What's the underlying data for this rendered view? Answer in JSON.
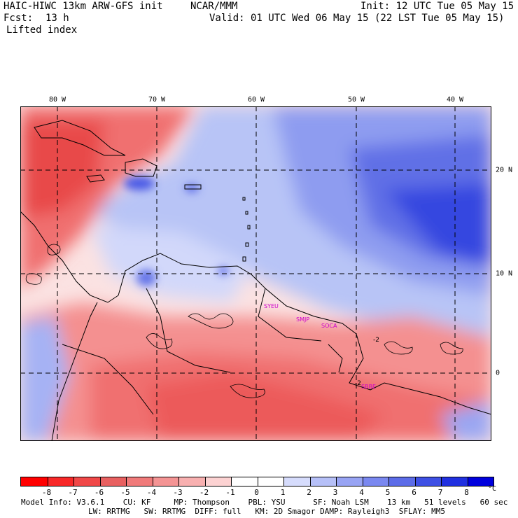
{
  "header": {
    "model_title": "HAIC-HIWC 13km ARW-GFS init",
    "center": "NCAR/MMM",
    "init": "Init: 12 UTC Tue 05 May 15",
    "fcst_label": "Fcst:",
    "fcst_value": "13 h",
    "valid": "Valid: 01 UTC Wed 06 May 15 (22 LST Tue 05 May 15)",
    "field": "Lifted index"
  },
  "map": {
    "longitude_labels": [
      "80 W",
      "70 W",
      "60 W",
      "50 W",
      "40 W"
    ],
    "latitude_labels": [
      "20 N",
      "10 N",
      "0"
    ],
    "locations": [
      {
        "name": "SYEU"
      },
      {
        "name": "SMJP"
      },
      {
        "name": "SOCA"
      },
      {
        "name": "SBBE"
      }
    ],
    "contour_labels": [
      "-2",
      "-2"
    ]
  },
  "colorbar": {
    "ticks": [
      "-8",
      "-7",
      "-6",
      "-5",
      "-4",
      "-3",
      "-2",
      "-1",
      "0",
      "1",
      "2",
      "3",
      "4",
      "5",
      "6",
      "7",
      "8"
    ],
    "unit": "°C",
    "colors": [
      "#ff0000",
      "#f82828",
      "#f04848",
      "#e86060",
      "#f07a7a",
      "#f49494",
      "#f8b0b0",
      "#fcd2d2",
      "#ffffff",
      "#ffffff",
      "#d6dcfc",
      "#b6c0f8",
      "#98a4f4",
      "#7a88f0",
      "#5c6ce8",
      "#3e50e4",
      "#2030e0",
      "#0000dd"
    ]
  },
  "model_info": {
    "line1": "Model Info: V3.6.1    CU: KF     MP: Thompson    PBL: YSU      SF: Noah LSM    13 km   51 levels   60 sec",
    "line2": "LW: RRTMG   SW: RRTMG  DIFF: full   KM: 2D Smagor DAMP: Rayleigh3  SFLAY: MM5"
  }
}
